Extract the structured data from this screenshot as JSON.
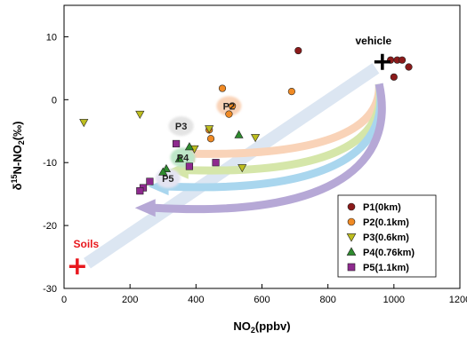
{
  "chart_data": {
    "type": "scatter",
    "xlabel": "NO₂(ppbv)",
    "ylabel": "δ15N-NO2(‰)",
    "ylabel_parts": {
      "delta": "δ",
      "sup": "15",
      "main": "N-NO",
      "sub": "2",
      "unit": "(‰)"
    },
    "xlabel_parts": {
      "main": "NO",
      "sub": "2",
      "unit": "(ppbv)"
    },
    "xlim": [
      0,
      1200
    ],
    "ylim": [
      -30,
      15
    ],
    "x_ticks": [
      0,
      200,
      400,
      600,
      800,
      1000,
      1200
    ],
    "y_ticks": [
      -30,
      -20,
      -10,
      0,
      10
    ],
    "grid": false,
    "legend_position": "bottom-right",
    "series": [
      {
        "name": "P1(0km)",
        "marker": "circle",
        "color": "#8B1A1A",
        "points": [
          [
            710,
            7.8
          ],
          [
            990,
            6.3
          ],
          [
            1010,
            6.3
          ],
          [
            1025,
            6.3
          ],
          [
            1000,
            3.6
          ],
          [
            1045,
            5.2
          ]
        ]
      },
      {
        "name": "P2(0.1km)",
        "marker": "circle",
        "color": "#F08A24",
        "points": [
          [
            480,
            1.8
          ],
          [
            690,
            1.3
          ],
          [
            510,
            -1.0
          ],
          [
            500,
            -2.3
          ],
          [
            440,
            -4.8
          ],
          [
            445,
            -6.2
          ]
        ]
      },
      {
        "name": "P3(0.6km)",
        "marker": "triangle-down",
        "color": "#BDBD1E",
        "points": [
          [
            60,
            -3.6
          ],
          [
            230,
            -2.3
          ],
          [
            440,
            -4.6
          ],
          [
            395,
            -7.8
          ],
          [
            580,
            -6.0
          ],
          [
            540,
            -10.8
          ]
        ]
      },
      {
        "name": "P4(0.76km)",
        "marker": "triangle",
        "color": "#2E8B2E",
        "points": [
          [
            530,
            -5.6
          ],
          [
            380,
            -7.5
          ],
          [
            350,
            -9.4
          ],
          [
            310,
            -11.0
          ],
          [
            300,
            -11.5
          ]
        ]
      },
      {
        "name": "P5(1.1km)",
        "marker": "square",
        "color": "#8E2A8E",
        "points": [
          [
            340,
            -7.0
          ],
          [
            460,
            -10.0
          ],
          [
            380,
            -10.6
          ],
          [
            260,
            -13.0
          ],
          [
            240,
            -14.0
          ],
          [
            230,
            -14.5
          ]
        ]
      }
    ],
    "annotations": {
      "vehicle": {
        "label": "vehicle",
        "x": 965,
        "y": 6
      },
      "soils": {
        "label": "Soils",
        "x": 40,
        "y": -26.5
      },
      "site_labels": [
        {
          "label": "P2",
          "x": 500,
          "y": -1.0
        },
        {
          "label": "P3",
          "x": 355,
          "y": -4.2
        },
        {
          "label": "P4",
          "x": 360,
          "y": -9.2
        },
        {
          "label": "P5",
          "x": 315,
          "y": -12.5
        }
      ]
    }
  }
}
